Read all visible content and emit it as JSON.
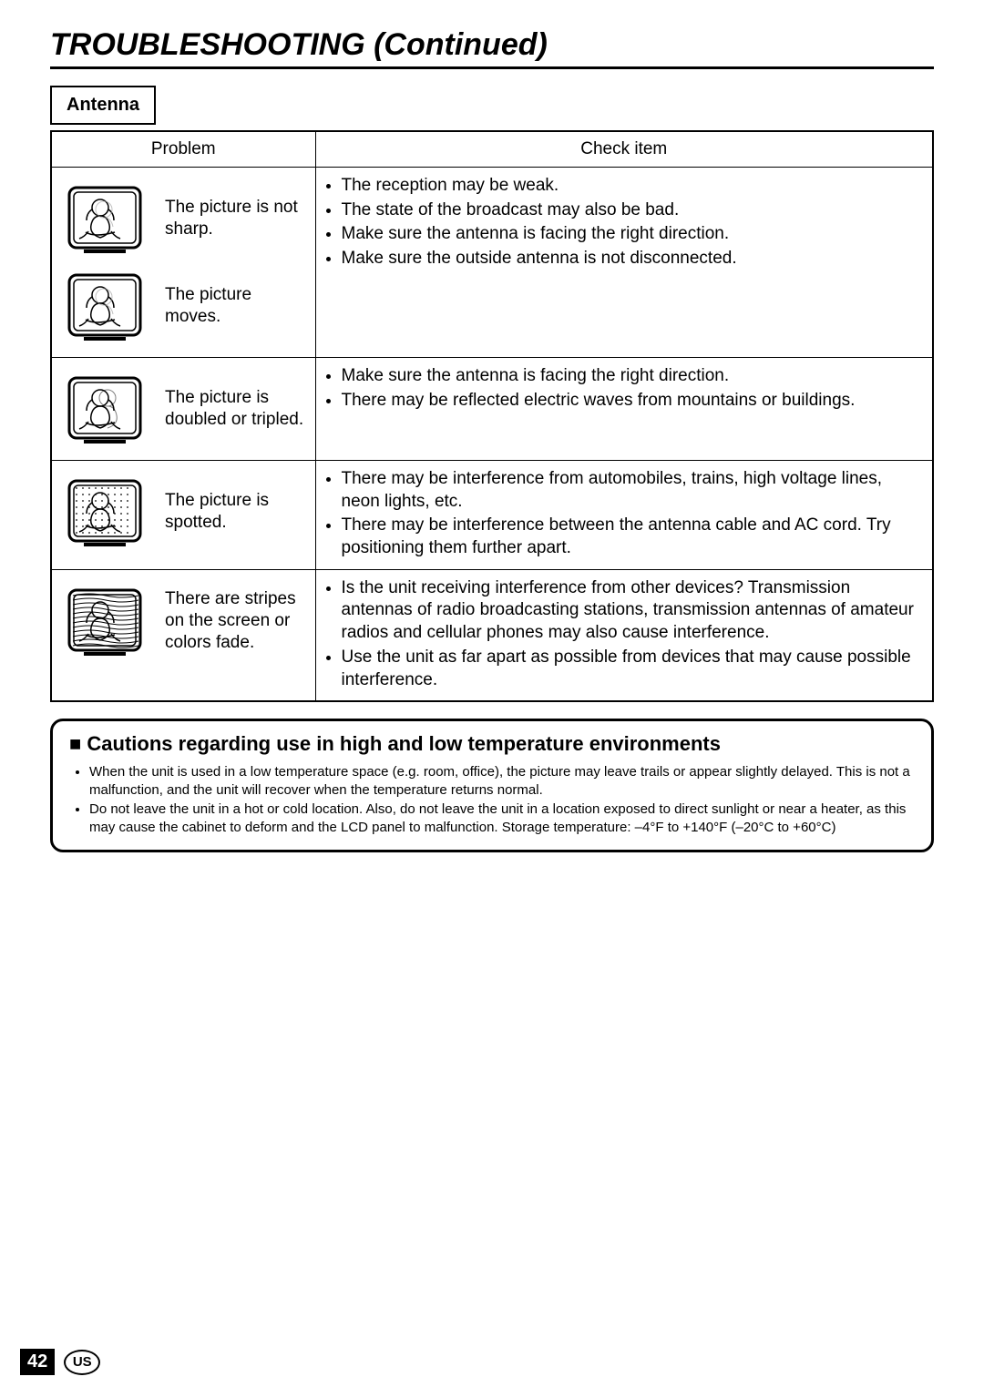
{
  "page": {
    "title": "TROUBLESHOOTING (Continued)",
    "section_label": "Antenna"
  },
  "table": {
    "headers": {
      "problem": "Problem",
      "check": "Check item"
    },
    "rows": [
      {
        "problems": [
          {
            "text": "The picture is not sharp.",
            "icon": "blur"
          },
          {
            "text": "The picture moves.",
            "icon": "blur"
          }
        ],
        "checks": [
          "The reception may be weak.",
          "The state of the broadcast may also be bad.",
          "Make sure the antenna is facing the right direction.",
          "Make sure the outside antenna is not disconnected."
        ]
      },
      {
        "problems": [
          {
            "text": "The picture is doubled or tripled.",
            "icon": "ghost"
          }
        ],
        "checks": [
          "Make sure the antenna is facing the right direction.",
          "There may be reflected electric waves from mountains or buildings."
        ]
      },
      {
        "problems": [
          {
            "text": "The picture is spotted.",
            "icon": "dots"
          }
        ],
        "checks": [
          "There may be interference from automobiles, trains, high voltage lines, neon lights, etc.",
          "There may be interference between the antenna cable and AC cord. Try positioning them further apart."
        ]
      },
      {
        "problems": [
          {
            "text": "There are stripes on the screen or colors fade.",
            "icon": "stripes"
          }
        ],
        "checks": [
          "Is the unit receiving interference from other devices? Transmission antennas of radio broadcasting stations, transmission antennas of amateur radios and cellular phones may also cause interference.",
          "Use the unit as far apart as possible from devices that may cause possible interference."
        ]
      }
    ]
  },
  "cautions": {
    "bullet": "■",
    "title": "Cautions regarding use in high and low temperature environments",
    "items": [
      "When the unit is used in a low temperature space (e.g. room, office), the picture may leave trails or appear slightly delayed. This is not a malfunction, and the unit will recover when the temperature returns normal.",
      "Do not leave the unit in a hot or cold location. Also, do not leave the unit in a location exposed to direct sunlight or near a heater, as this may cause the cabinet to deform and the LCD panel to malfunction. Storage temperature: –4°F to +140°F (–20°C to +60°C)"
    ]
  },
  "footer": {
    "page_number": "42",
    "region": "US"
  },
  "icons": {
    "tv_colors": {
      "stroke": "#000000",
      "fill": "#ffffff",
      "gray": "#888888"
    }
  }
}
